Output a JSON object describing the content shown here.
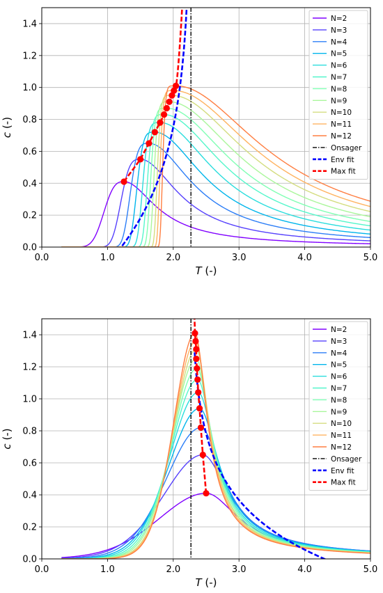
{
  "chart_data": [
    {
      "type": "line",
      "xlabel": "T (-)",
      "ylabel": "c (-)",
      "xlim": [
        0.0,
        5.0
      ],
      "ylim": [
        0.0,
        1.5
      ],
      "xticks": [
        "0.0",
        "1.0",
        "2.0",
        "3.0",
        "4.0",
        "5.0"
      ],
      "yticks": [
        "0.0",
        "0.2",
        "0.4",
        "0.6",
        "0.8",
        "1.0",
        "1.2",
        "1.4"
      ],
      "grid": true,
      "legend_position": "top-right",
      "series": [
        {
          "name": "N=2",
          "peak_T": 1.25,
          "peak_c": 0.41,
          "color": "#8000ff"
        },
        {
          "name": "N=3",
          "peak_T": 1.5,
          "peak_c": 0.55,
          "color": "#5641fd"
        },
        {
          "name": "N=4",
          "peak_T": 1.63,
          "peak_c": 0.65,
          "color": "#2c7ef7"
        },
        {
          "name": "N=5",
          "peak_T": 1.72,
          "peak_c": 0.72,
          "color": "#00b5eb"
        },
        {
          "name": "N=6",
          "peak_T": 1.8,
          "peak_c": 0.78,
          "color": "#2adddd"
        },
        {
          "name": "N=7",
          "peak_T": 1.86,
          "peak_c": 0.83,
          "color": "#54f6cb"
        },
        {
          "name": "N=8",
          "peak_T": 1.9,
          "peak_c": 0.87,
          "color": "#80ffb4"
        },
        {
          "name": "N=9",
          "peak_T": 1.94,
          "peak_c": 0.91,
          "color": "#aaf69b"
        },
        {
          "name": "N=10",
          "peak_T": 1.98,
          "peak_c": 0.95,
          "color": "#d4dd80"
        },
        {
          "name": "N=11",
          "peak_T": 2.01,
          "peak_c": 0.98,
          "color": "#ffb360"
        },
        {
          "name": "N=12",
          "peak_T": 2.04,
          "peak_c": 1.01,
          "color": "#ff7e41"
        }
      ],
      "onsager_T": 2.269,
      "env_fit": {
        "name": "Env fit",
        "color": "#0000ff"
      },
      "max_fit": {
        "name": "Max fit",
        "color": "#ff0000",
        "points": [
          [
            1.25,
            0.41
          ],
          [
            1.5,
            0.55
          ],
          [
            1.63,
            0.65
          ],
          [
            1.72,
            0.72
          ],
          [
            1.8,
            0.78
          ],
          [
            1.86,
            0.83
          ],
          [
            1.9,
            0.87
          ],
          [
            1.94,
            0.91
          ],
          [
            1.98,
            0.95
          ],
          [
            2.01,
            0.98
          ],
          [
            2.04,
            1.01
          ]
        ]
      },
      "onsager_label": "Onsager"
    },
    {
      "type": "line",
      "xlabel": "T (-)",
      "ylabel": "c (-)",
      "xlim": [
        0.0,
        5.0
      ],
      "ylim": [
        0.0,
        1.5
      ],
      "xticks": [
        "0.0",
        "1.0",
        "2.0",
        "3.0",
        "4.0",
        "5.0"
      ],
      "yticks": [
        "0.0",
        "0.2",
        "0.4",
        "0.6",
        "0.8",
        "1.0",
        "1.2",
        "1.4"
      ],
      "grid": true,
      "legend_position": "top-right",
      "series": [
        {
          "name": "N=2",
          "peak_T": 2.5,
          "peak_c": 0.41,
          "color": "#8000ff"
        },
        {
          "name": "N=3",
          "peak_T": 2.45,
          "peak_c": 0.65,
          "color": "#5641fd"
        },
        {
          "name": "N=4",
          "peak_T": 2.42,
          "peak_c": 0.82,
          "color": "#2c7ef7"
        },
        {
          "name": "N=5",
          "peak_T": 2.4,
          "peak_c": 0.94,
          "color": "#00b5eb"
        },
        {
          "name": "N=6",
          "peak_T": 2.38,
          "peak_c": 1.04,
          "color": "#2adddd"
        },
        {
          "name": "N=7",
          "peak_T": 2.37,
          "peak_c": 1.12,
          "color": "#54f6cb"
        },
        {
          "name": "N=8",
          "peak_T": 2.36,
          "peak_c": 1.19,
          "color": "#80ffb4"
        },
        {
          "name": "N=9",
          "peak_T": 2.35,
          "peak_c": 1.25,
          "color": "#aaf69b"
        },
        {
          "name": "N=10",
          "peak_T": 2.35,
          "peak_c": 1.31,
          "color": "#d4dd80"
        },
        {
          "name": "N=11",
          "peak_T": 2.34,
          "peak_c": 1.36,
          "color": "#ffb360"
        },
        {
          "name": "N=12",
          "peak_T": 2.33,
          "peak_c": 1.41,
          "color": "#ff7e41"
        }
      ],
      "onsager_T": 2.269,
      "env_fit": {
        "name": "Env fit",
        "color": "#0000ff"
      },
      "max_fit": {
        "name": "Max fit",
        "color": "#ff0000",
        "points": [
          [
            2.5,
            0.41
          ],
          [
            2.45,
            0.65
          ],
          [
            2.42,
            0.82
          ],
          [
            2.4,
            0.94
          ],
          [
            2.38,
            1.04
          ],
          [
            2.37,
            1.12
          ],
          [
            2.36,
            1.19
          ],
          [
            2.35,
            1.25
          ],
          [
            2.35,
            1.31
          ],
          [
            2.34,
            1.36
          ],
          [
            2.33,
            1.41
          ]
        ]
      },
      "onsager_label": "Onsager"
    }
  ]
}
